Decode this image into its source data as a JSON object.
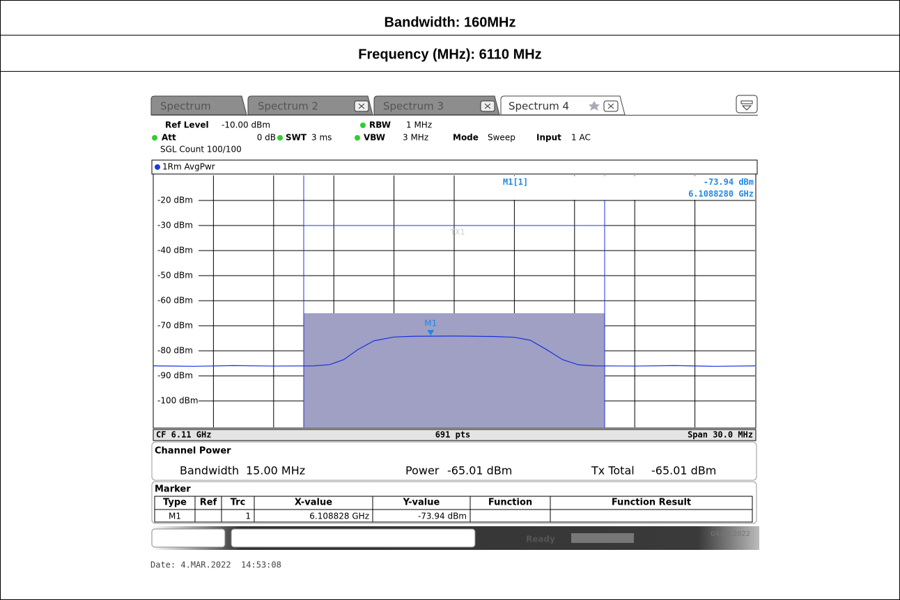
{
  "header": {
    "bandwidth": "Bandwidth: 160MHz",
    "frequency": "Frequency (MHz): 6110 MHz"
  },
  "screen": {
    "tabs": [
      "Spectrum",
      "Spectrum 2",
      "Spectrum 3",
      "Spectrum 4"
    ],
    "settings": {
      "ref_level_label": "Ref Level",
      "ref_level": "-10.00 dBm",
      "rbw_label": "RBW",
      "rbw": "1 MHz",
      "att_label": "Att",
      "att": "0 dB",
      "swt_label": "SWT",
      "swt": "3 ms",
      "vbw_label": "VBW",
      "vbw": "3 MHz",
      "mode_label": "Mode",
      "mode": "Sweep",
      "input_label": "Input",
      "input": "1 AC",
      "count": "SGL Count 100/100"
    },
    "trace_label": "1Rm AvgPwr",
    "plot": {
      "ylim": [
        -10,
        -110
      ],
      "yticks": [
        {
          "value": -20,
          "label": "-20 dBm"
        },
        {
          "value": -30,
          "label": "-30 dBm"
        },
        {
          "value": -40,
          "label": "-40 dBm"
        },
        {
          "value": -50,
          "label": "-50 dBm"
        },
        {
          "value": -60,
          "label": "-60 dBm"
        },
        {
          "value": -70,
          "label": "-70 dBm"
        },
        {
          "value": -80,
          "label": "-80 dBm"
        },
        {
          "value": -90,
          "label": "-90 dBm"
        },
        {
          "value": -100,
          "label": "-100 dBm"
        }
      ],
      "xlim": [
        6095,
        6125
      ],
      "xticks": [
        6098,
        6101,
        6104,
        6107,
        6110,
        6113,
        6116,
        6119,
        6122
      ],
      "channel": [
        6102.5,
        6117.5
      ],
      "limit": {
        "name": "TX1",
        "value": -30
      },
      "trace": {
        "x": [
          6095,
          6097,
          6099,
          6101,
          6103,
          6103.8,
          6104.5,
          6105.2,
          6106,
          6107,
          6108,
          6110,
          6112,
          6113,
          6113.8,
          6114.6,
          6115.4,
          6116.2,
          6117,
          6119,
          6121,
          6123,
          6125
        ],
        "values": [
          -86,
          -86.2,
          -85.9,
          -86.1,
          -86,
          -85.5,
          -83.5,
          -79.5,
          -76,
          -74.5,
          -74.2,
          -74.1,
          -74.3,
          -74.6,
          -75.8,
          -79.5,
          -83.5,
          -85.6,
          -86,
          -86.1,
          -85.9,
          -86.2,
          -86
        ]
      },
      "marker": {
        "name": "M1",
        "readout": "M1[1]",
        "x": 6108.828,
        "y": -73.94,
        "x_label": "6.1088280 GHz",
        "y_label": "-73.94 dBm"
      },
      "cf": "CF 6.11 GHz",
      "points": "691 pts",
      "span": "Span 30.0 MHz"
    },
    "channel_power": {
      "title": "Channel Power",
      "bandwidth_label": "Bandwidth",
      "bandwidth": "15.00 MHz",
      "power_label": "Power",
      "power": {
        "value": -65.01,
        "label": "-65.01 dBm"
      },
      "tx_total_label": "Tx Total",
      "tx_total": "-65.01 dBm"
    },
    "marker_table": {
      "title": "Marker",
      "columns": [
        "Type",
        "Ref",
        "Trc",
        "X-value",
        "Y-value",
        "Function",
        "Function Result"
      ],
      "rows": [
        {
          "type": "M1",
          "trc": "1",
          "x": "6.108828 GHz",
          "y": "-73.94 dBm"
        }
      ]
    },
    "status": "Ready",
    "status_date": "04.03.2022"
  },
  "date": "Date: 4.MAR.2022  14:53:08"
}
